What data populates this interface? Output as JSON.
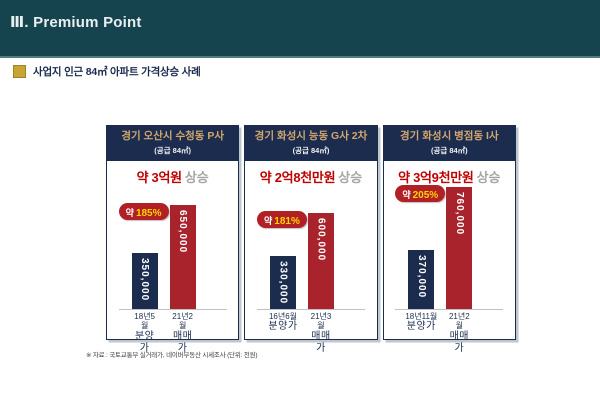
{
  "header": {
    "title": "Ⅲ. Premium Point"
  },
  "section": {
    "bullet_icon": "gold-square-bullet",
    "title": "사업지 인근 84㎡ 아파트 가격상승 사례"
  },
  "footnote": "※ 자료 : 국토교통부 실거래가, 네이버부동산 시세조사 (단위: 천원)",
  "colors": {
    "slide_header_bg": "#15444E",
    "panel_navy": "#1B2C4F",
    "panel_title_gold": "#D2A76E",
    "bar_navy": "#1B2C4F",
    "bar_red": "#A8232B",
    "badge_red": "#B02025",
    "badge_yellow": "#FFD400",
    "rise_red": "#C00000",
    "rise_gray": "#A6A6A6",
    "bullet_gold": "#C7A433"
  },
  "chart_data": [
    {
      "type": "bar",
      "title": "경기 오산시 수청동 P사",
      "subtitle": "(공급 84㎡)",
      "rise_amount": "약 3억원",
      "rise_suffix": "상승",
      "badge_approx": "약",
      "badge_percent": "185%",
      "categories": [
        "18년5월 분양가",
        "21년2월 매매가"
      ],
      "category_lines": [
        {
          "date": "18년5\n월",
          "type": "분양\n가"
        },
        {
          "date": "21년2\n월",
          "type": "매매\n가"
        }
      ],
      "values": [
        350000,
        650000
      ],
      "value_labels": [
        "350,000",
        "650,000"
      ],
      "unit": "천원",
      "ylim": [
        0,
        760000
      ],
      "bar_colors": [
        "#1B2C4F",
        "#A8232B"
      ],
      "grid": false,
      "legend": "none"
    },
    {
      "type": "bar",
      "title": "경기 화성시 능동 G사 2차",
      "subtitle": "(공급 84㎡)",
      "rise_amount": "약 2억8천만원",
      "rise_suffix": "상승",
      "badge_approx": "약",
      "badge_percent": "181%",
      "categories": [
        "16년6월 분양가",
        "21년3월 매매가"
      ],
      "category_lines": [
        {
          "date": "16년6월",
          "type": "분양가"
        },
        {
          "date": "21년3\n월",
          "type": "매매\n가"
        }
      ],
      "values": [
        330000,
        600000
      ],
      "value_labels": [
        "330,000",
        "600,000"
      ],
      "unit": "천원",
      "ylim": [
        0,
        760000
      ],
      "bar_colors": [
        "#1B2C4F",
        "#A8232B"
      ],
      "grid": false,
      "legend": "none"
    },
    {
      "type": "bar",
      "title": "경기 화성시 병점동 I사",
      "subtitle": "(공급 84㎡)",
      "rise_amount": "약 3억9천만원",
      "rise_suffix": "상승",
      "badge_approx": "약",
      "badge_percent": "205%",
      "categories": [
        "18년11월 분양가",
        "21년2월 매매가"
      ],
      "category_lines": [
        {
          "date": "18년11월",
          "type": "분양가"
        },
        {
          "date": "21년2\n월",
          "type": "매매\n가"
        }
      ],
      "values": [
        370000,
        760000
      ],
      "value_labels": [
        "370,000",
        "760,000"
      ],
      "unit": "천원",
      "ylim": [
        0,
        760000
      ],
      "bar_colors": [
        "#1B2C4F",
        "#A8232B"
      ],
      "grid": false,
      "legend": "none"
    }
  ]
}
